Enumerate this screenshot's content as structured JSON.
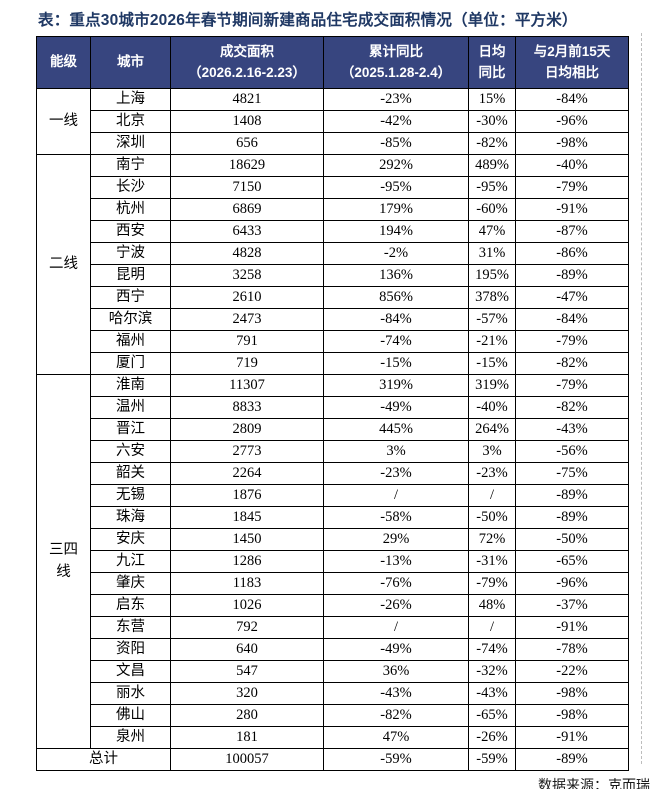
{
  "title": "表：重点30城市2026年春节期间新建商品住宅成交面积情况（单位：平方米）",
  "source": "数据来源：克而瑞",
  "colors": {
    "header_bg": "#37457F",
    "header_text": "#FFFFFF",
    "title_text": "#1F3864",
    "border": "#000000"
  },
  "table": {
    "headers": {
      "tier": "能级",
      "city": "城市",
      "area": [
        "成交面积",
        "（2026.2.16-2.23）"
      ],
      "cum_yoy": [
        "累计同比",
        "（2025.1.28-2.4）"
      ],
      "daily_yoy": [
        "日均",
        "同比"
      ],
      "vs_feb": [
        "与2月前15天",
        "日均相比"
      ]
    },
    "groups": [
      {
        "tier": "一线",
        "rows": [
          [
            "上海",
            "4821",
            "-23%",
            "15%",
            "-84%"
          ],
          [
            "北京",
            "1408",
            "-42%",
            "-30%",
            "-96%"
          ],
          [
            "深圳",
            "656",
            "-85%",
            "-82%",
            "-98%"
          ]
        ]
      },
      {
        "tier": "二线",
        "rows": [
          [
            "南宁",
            "18629",
            "292%",
            "489%",
            "-40%"
          ],
          [
            "长沙",
            "7150",
            "-95%",
            "-95%",
            "-79%"
          ],
          [
            "杭州",
            "6869",
            "179%",
            "-60%",
            "-91%"
          ],
          [
            "西安",
            "6433",
            "194%",
            "47%",
            "-87%"
          ],
          [
            "宁波",
            "4828",
            "-2%",
            "31%",
            "-86%"
          ],
          [
            "昆明",
            "3258",
            "136%",
            "195%",
            "-89%"
          ],
          [
            "西宁",
            "2610",
            "856%",
            "378%",
            "-47%"
          ],
          [
            "哈尔滨",
            "2473",
            "-84%",
            "-57%",
            "-84%"
          ],
          [
            "福州",
            "791",
            "-74%",
            "-21%",
            "-79%"
          ],
          [
            "厦门",
            "719",
            "-15%",
            "-15%",
            "-82%"
          ]
        ]
      },
      {
        "tier": "三四线",
        "rows": [
          [
            "淮南",
            "11307",
            "319%",
            "319%",
            "-79%"
          ],
          [
            "温州",
            "8833",
            "-49%",
            "-40%",
            "-82%"
          ],
          [
            "晋江",
            "2809",
            "445%",
            "264%",
            "-43%"
          ],
          [
            "六安",
            "2773",
            "3%",
            "3%",
            "-56%"
          ],
          [
            "韶关",
            "2264",
            "-23%",
            "-23%",
            "-75%"
          ],
          [
            "无锡",
            "1876",
            "/",
            "/",
            "-89%"
          ],
          [
            "珠海",
            "1845",
            "-58%",
            "-50%",
            "-89%"
          ],
          [
            "安庆",
            "1450",
            "29%",
            "72%",
            "-50%"
          ],
          [
            "九江",
            "1286",
            "-13%",
            "-31%",
            "-65%"
          ],
          [
            "肇庆",
            "1183",
            "-76%",
            "-79%",
            "-96%"
          ],
          [
            "启东",
            "1026",
            "-26%",
            "48%",
            "-37%"
          ],
          [
            "东营",
            "792",
            "/",
            "/",
            "-91%"
          ],
          [
            "资阳",
            "640",
            "-49%",
            "-74%",
            "-78%"
          ],
          [
            "文昌",
            "547",
            "36%",
            "-32%",
            "-22%"
          ],
          [
            "丽水",
            "320",
            "-43%",
            "-43%",
            "-98%"
          ],
          [
            "佛山",
            "280",
            "-82%",
            "-65%",
            "-98%"
          ],
          [
            "泉州",
            "181",
            "47%",
            "-26%",
            "-91%"
          ]
        ]
      }
    ],
    "total": [
      "总计",
      "100057",
      "-59%",
      "-59%",
      "-89%"
    ]
  }
}
